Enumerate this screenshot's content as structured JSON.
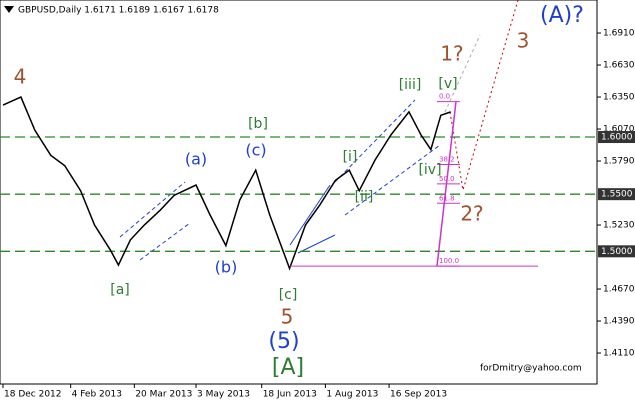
{
  "chart_data": {
    "type": "line",
    "title": "GBPUSD,Daily  1.6171 1.6189 1.6167 1.6178",
    "color": "#000000",
    "x": [
      0,
      9,
      16,
      24,
      31,
      39,
      46,
      54,
      58,
      64,
      71,
      79,
      86,
      97,
      104,
      112,
      119,
      127,
      134,
      144,
      152,
      159,
      167,
      174,
      179,
      187,
      195,
      204,
      210,
      215,
      220,
      225
    ],
    "values": [
      1.628,
      1.635,
      1.606,
      1.584,
      1.575,
      1.553,
      1.523,
      1.501,
      1.488,
      1.51,
      1.523,
      1.536,
      1.549,
      1.558,
      1.532,
      1.505,
      1.545,
      1.571,
      1.532,
      1.485,
      1.523,
      1.54,
      1.562,
      1.571,
      1.553,
      1.58,
      1.602,
      1.622,
      1.602,
      1.589,
      1.619,
      1.622
    ],
    "xlim": [
      0,
      300
    ],
    "xticks": [
      {
        "value": 0,
        "label": "18 Dec 2012"
      },
      {
        "value": 34,
        "label": "4 Feb 2013"
      },
      {
        "value": 66,
        "label": "20 Mar 2013"
      },
      {
        "value": 97,
        "label": "3 May 2013"
      },
      {
        "value": 130,
        "label": "18 Jun 2013"
      },
      {
        "value": 162,
        "label": "1 Aug 2013"
      },
      {
        "value": 194,
        "label": "16 Sep 2013"
      }
    ],
    "ylim": [
      1.3839,
      1.7199
    ],
    "yticks": [
      {
        "value": 1.691,
        "label": "1.6910"
      },
      {
        "value": 1.663,
        "label": "1.6630"
      },
      {
        "value": 1.635,
        "label": "1.6350"
      },
      {
        "value": 1.607,
        "label": "1.6070"
      },
      {
        "value": 1.579,
        "label": "1.5790"
      },
      {
        "value": 1.523,
        "label": "1.5230"
      },
      {
        "value": 1.467,
        "label": "1.4670"
      },
      {
        "value": 1.439,
        "label": "1.4390"
      },
      {
        "value": 1.411,
        "label": "1.4110"
      }
    ],
    "levels": [
      {
        "value": 1.6,
        "label": "1.6000"
      },
      {
        "value": 1.55,
        "label": "1.5500"
      },
      {
        "value": 1.5,
        "label": "1.5000"
      }
    ],
    "level_color": "#2a8a2a",
    "fib_high": 1.631,
    "fib_low": 1.487,
    "fib_color": "#cc33cc",
    "fib_levels": [
      {
        "value": 0,
        "label": "0.0"
      },
      {
        "value": 38.2,
        "label": "38.2"
      },
      {
        "value": 50,
        "label": "50.0"
      },
      {
        "value": 61.8,
        "label": "61.8"
      },
      {
        "value": 100,
        "label": "100.0"
      }
    ],
    "annotations": [
      {
        "text": "4",
        "color": "#a0522d"
      },
      {
        "text": "[a]",
        "color": "#2e7d32"
      },
      {
        "text": "(a)",
        "color": "#1f3fd0"
      },
      {
        "text": "(b)",
        "color": "#1f3fd0"
      },
      {
        "text": "[b]",
        "color": "#2e7d32"
      },
      {
        "text": "(c)",
        "color": "#1f3fd0"
      },
      {
        "text": "[c]",
        "color": "#2e7d32"
      },
      {
        "text": "5",
        "color": "#a0522d"
      },
      {
        "text": "(5)",
        "color": "#1f3fd0"
      },
      {
        "text": "[A]",
        "color": "#2e7d32"
      },
      {
        "text": "[i]",
        "color": "#2e7d32"
      },
      {
        "text": "[ii]",
        "color": "#2e7d32"
      },
      {
        "text": "[iii]",
        "color": "#2e7d32"
      },
      {
        "text": "[iv]",
        "color": "#2e7d32"
      },
      {
        "text": "[v]",
        "color": "#2e7d32"
      },
      {
        "text": "1?",
        "color": "#a0522d"
      },
      {
        "text": "2?",
        "color": "#a0522d"
      },
      {
        "text": "3",
        "color": "#a0522d"
      },
      {
        "text": "(A)?",
        "color": "#1f3fd0"
      }
    ],
    "watermark": "forDmitry@yahoo.com"
  }
}
